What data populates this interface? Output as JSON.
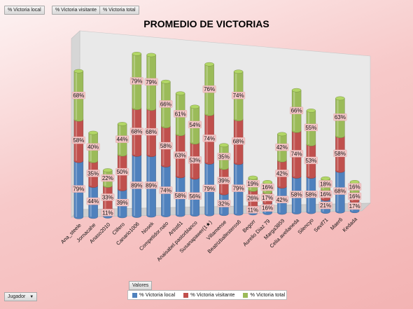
{
  "field_buttons": [
    "% Victoria local",
    "% Victoria visitante",
    "% Victoria total"
  ],
  "axis_field_button": "Jugador",
  "values_field_button": "Valores",
  "colors": {
    "local": "#4f81bd",
    "visitante": "#c0504d",
    "total": "#9bbb59"
  },
  "chart_data": {
    "type": "bar",
    "stacked": true,
    "three_d": true,
    "title": "PROMEDIO DE VICTORIAS",
    "categories": [
      "Ana_steele",
      "Jornacahe",
      "Anaso2010",
      "Clifero",
      "Canario1006",
      "Nosek",
      "Competidor.nato",
      "Artist61",
      "Anaisabel.pastorblanco",
      "Susanapawer(1★)",
      "Villamense",
      "Beatrizballesteros6",
      "Begorr",
      "Aurelio Diaz 79",
      "Marga3859",
      "Celia.avellaneda",
      "Silencyo",
      "Sevif71",
      "Maer6",
      "Kedada"
    ],
    "series": [
      {
        "name": "% Victoria local",
        "values": [
          79,
          44,
          11,
          39,
          89,
          89,
          74,
          58,
          56,
          79,
          32,
          79,
          11,
          16,
          42,
          58,
          58,
          21,
          68,
          17
        ]
      },
      {
        "name": "% Victoria visitante",
        "values": [
          58,
          35,
          33,
          50,
          68,
          68,
          58,
          63,
          53,
          74,
          39,
          68,
          26,
          17,
          42,
          74,
          53,
          16,
          58,
          16
        ]
      },
      {
        "name": "% Victoria total",
        "values": [
          68,
          40,
          22,
          44,
          79,
          79,
          66,
          61,
          54,
          76,
          35,
          74,
          19,
          16,
          42,
          66,
          55,
          18,
          63,
          16
        ]
      }
    ],
    "legend_position": "bottom"
  }
}
